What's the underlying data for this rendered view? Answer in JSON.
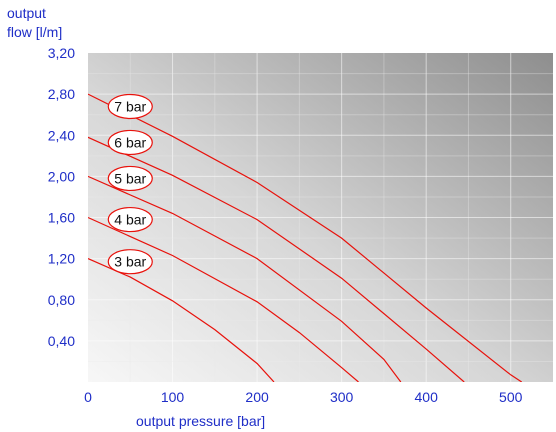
{
  "chart_data": {
    "type": "line",
    "ylabel_lines": [
      "output",
      "flow [l/m]"
    ],
    "xlabel": "output pressure [bar]",
    "xlim": [
      0,
      550
    ],
    "ylim": [
      0,
      3.2
    ],
    "x_ticks": [
      0,
      100,
      200,
      300,
      400,
      500
    ],
    "x_tick_labels": [
      "0",
      "100",
      "200",
      "300",
      "400",
      "500"
    ],
    "y_ticks": [
      0.4,
      0.8,
      1.2,
      1.6,
      2.0,
      2.4,
      2.8,
      3.2
    ],
    "y_tick_labels": [
      "0,40",
      "0,80",
      "1,20",
      "1,60",
      "2,00",
      "2,40",
      "2,80",
      "3,20"
    ],
    "grid": true,
    "line_color": "#e8120c",
    "label_color": "#1f2ec7",
    "series": [
      {
        "name": "3 bar",
        "label_at": [
          50,
          1.17
        ],
        "points": [
          [
            0,
            1.2
          ],
          [
            50,
            1.02
          ],
          [
            100,
            0.79
          ],
          [
            150,
            0.51
          ],
          [
            200,
            0.18
          ],
          [
            220,
            0
          ]
        ]
      },
      {
        "name": "4 bar",
        "label_at": [
          50,
          1.58
        ],
        "points": [
          [
            0,
            1.6
          ],
          [
            100,
            1.23
          ],
          [
            200,
            0.78
          ],
          [
            250,
            0.48
          ],
          [
            300,
            0.14
          ],
          [
            320,
            0
          ]
        ]
      },
      {
        "name": "5 bar",
        "label_at": [
          50,
          1.98
        ],
        "points": [
          [
            0,
            2.0
          ],
          [
            100,
            1.64
          ],
          [
            200,
            1.2
          ],
          [
            300,
            0.59
          ],
          [
            350,
            0.22
          ],
          [
            370,
            0
          ]
        ]
      },
      {
        "name": "6 bar",
        "label_at": [
          50,
          2.33
        ],
        "points": [
          [
            0,
            2.38
          ],
          [
            100,
            2.01
          ],
          [
            200,
            1.58
          ],
          [
            300,
            1.01
          ],
          [
            400,
            0.32
          ],
          [
            445,
            0
          ]
        ]
      },
      {
        "name": "7 bar",
        "label_at": [
          50,
          2.68
        ],
        "points": [
          [
            0,
            2.8
          ],
          [
            100,
            2.39
          ],
          [
            200,
            1.94
          ],
          [
            300,
            1.4
          ],
          [
            400,
            0.72
          ],
          [
            500,
            0.07
          ],
          [
            513,
            0
          ]
        ]
      }
    ]
  }
}
